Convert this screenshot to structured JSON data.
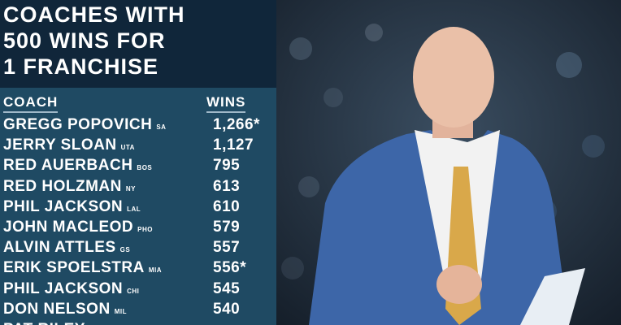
{
  "header": {
    "title_lines": [
      "COACHES WITH",
      "500 WINS FOR",
      "1 FRANCHISE"
    ]
  },
  "table": {
    "columns": [
      "COACH",
      "WINS"
    ],
    "rows": [
      {
        "name": "GREGG POPOVICH",
        "team": "SA",
        "wins": "1,266*"
      },
      {
        "name": "JERRY SLOAN",
        "team": "UTA",
        "wins": "1,127"
      },
      {
        "name": "RED AUERBACH",
        "team": "BOS",
        "wins": "795"
      },
      {
        "name": "RED HOLZMAN",
        "team": "NY",
        "wins": "613"
      },
      {
        "name": "PHIL JACKSON",
        "team": "LAL",
        "wins": "610"
      },
      {
        "name": "JOHN MACLEOD",
        "team": "PHO",
        "wins": "579"
      },
      {
        "name": "ALVIN ATTLES",
        "team": "GS",
        "wins": "557"
      },
      {
        "name": "ERIK SPOELSTRA",
        "team": "MIA",
        "wins": "556*"
      },
      {
        "name": "PHIL JACKSON",
        "team": "CHI",
        "wins": "545"
      },
      {
        "name": "DON NELSON",
        "team": "MIL",
        "wins": "540"
      },
      {
        "name": "PAT RILEY"
      }
    ]
  }
}
